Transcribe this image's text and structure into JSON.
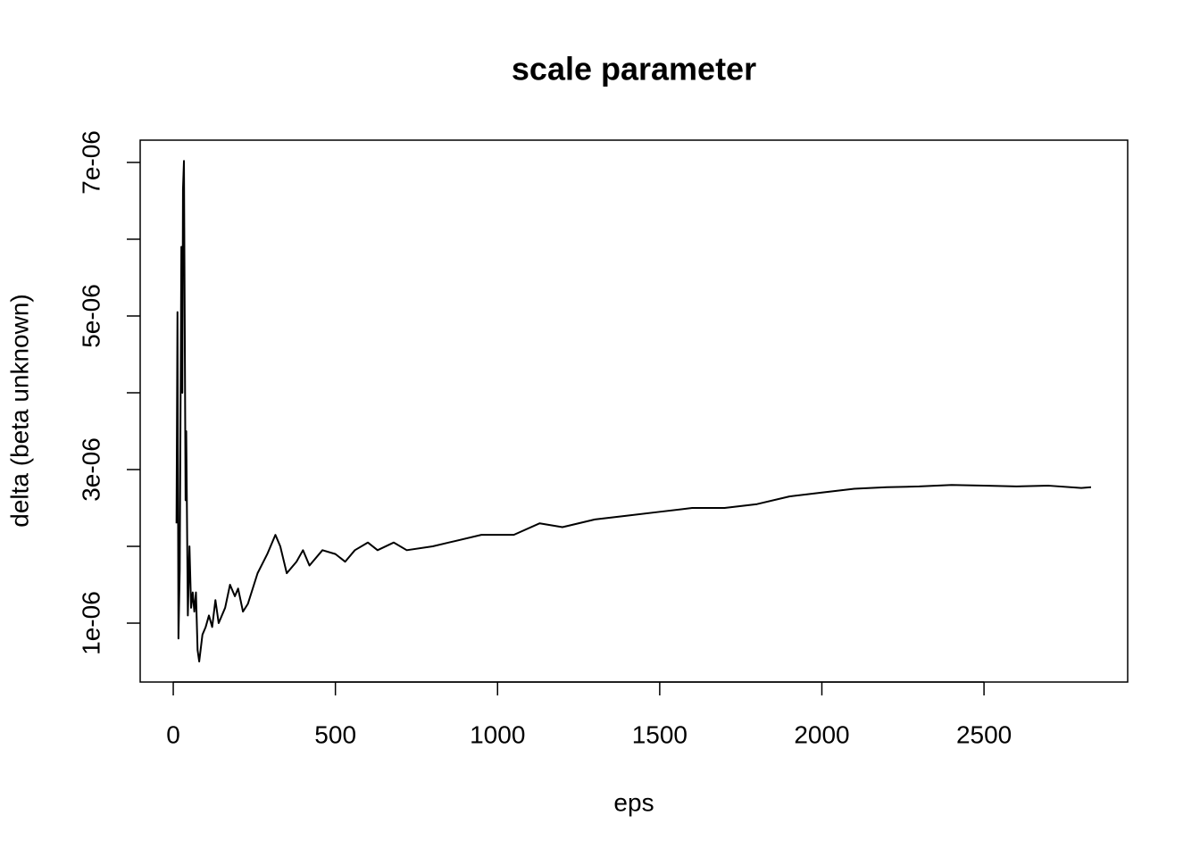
{
  "chart_data": {
    "type": "line",
    "title": "scale parameter",
    "xlabel": "eps",
    "ylabel": "delta (beta unknown)",
    "x": [
      10,
      13,
      16,
      20,
      25,
      28,
      30,
      33,
      38,
      40,
      45,
      50,
      55,
      60,
      65,
      70,
      75,
      80,
      90,
      100,
      110,
      120,
      130,
      140,
      160,
      175,
      190,
      200,
      215,
      230,
      260,
      290,
      315,
      330,
      350,
      380,
      400,
      420,
      460,
      500,
      530,
      560,
      600,
      630,
      680,
      720,
      800,
      850,
      950,
      1050,
      1130,
      1200,
      1300,
      1400,
      1500,
      1600,
      1700,
      1800,
      1900,
      2000,
      2100,
      2200,
      2300,
      2400,
      2500,
      2600,
      2700,
      2800,
      2830
    ],
    "series": [
      {
        "color": "#000000",
        "values": [
          2.3e-06,
          5.05e-06,
          8e-07,
          1.7e-06,
          5.9e-06,
          4e-06,
          6.65e-06,
          7.02e-06,
          2.6e-06,
          3.5e-06,
          1.1e-06,
          2e-06,
          1.2e-06,
          1.4e-06,
          1.15e-06,
          1.4e-06,
          6.5e-07,
          5e-07,
          8.5e-07,
          9.5e-07,
          1.1e-06,
          9.5e-07,
          1.3e-06,
          1e-06,
          1.2e-06,
          1.5e-06,
          1.35e-06,
          1.45e-06,
          1.15e-06,
          1.25e-06,
          1.65e-06,
          1.9e-06,
          2.15e-06,
          2e-06,
          1.65e-06,
          1.8e-06,
          1.95e-06,
          1.75e-06,
          1.95e-06,
          1.9e-06,
          1.8e-06,
          1.95e-06,
          2.05e-06,
          1.95e-06,
          2.05e-06,
          1.95e-06,
          2e-06,
          2.05e-06,
          2.15e-06,
          2.15e-06,
          2.3e-06,
          2.25e-06,
          2.35e-06,
          2.4e-06,
          2.45e-06,
          2.5e-06,
          2.5e-06,
          2.55e-06,
          2.65e-06,
          2.7e-06,
          2.75e-06,
          2.77e-06,
          2.78e-06,
          2.8e-06,
          2.79e-06,
          2.78e-06,
          2.79e-06,
          2.76e-06,
          2.77e-06
        ]
      }
    ],
    "xlim": [
      -102,
      2943
    ],
    "xticks": [
      0,
      500,
      1000,
      1500,
      2000,
      2500
    ],
    "ylim": [
      2.33e-07,
      7.29e-06
    ],
    "yticks": [
      {
        "value": 1e-06,
        "label": "1e-06"
      },
      {
        "value": 3e-06,
        "label": "3e-06"
      },
      {
        "value": 5e-06,
        "label": "5e-06"
      },
      {
        "value": 7e-06,
        "label": "7e-06"
      }
    ],
    "yminor_ticks": [
      2e-06,
      4e-06,
      6e-06
    ]
  }
}
